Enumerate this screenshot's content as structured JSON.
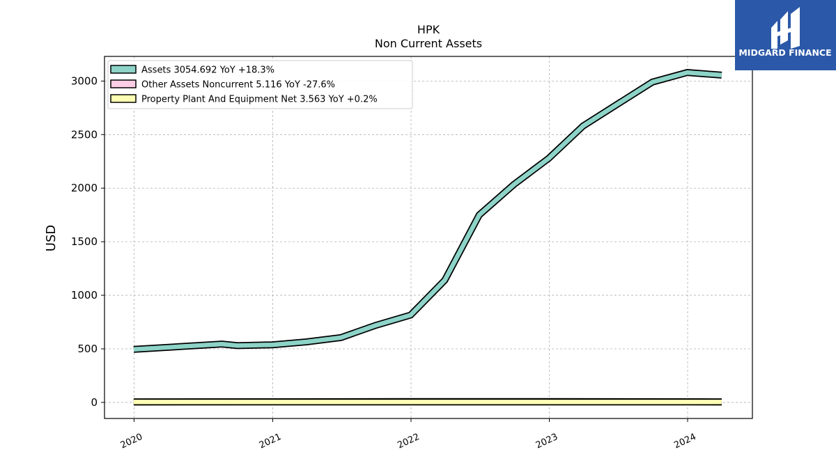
{
  "title": "HPK",
  "subtitle": "Non Current  Assets",
  "logo": {
    "brand": "MIDGARD FINANCE",
    "bg_color": "#2b58a8"
  },
  "chart_data": {
    "type": "line",
    "title": "HPK",
    "subtitle": "Non Current  Assets",
    "xlabel": "",
    "ylabel": "USD",
    "ylim": [
      -150,
      3230
    ],
    "xlim": [
      "2019-10-15",
      "2024-06-20"
    ],
    "yticks": [
      0,
      500,
      1000,
      1500,
      2000,
      2500,
      3000
    ],
    "xticks": [
      "2020",
      "2021",
      "2022",
      "2023",
      "2024"
    ],
    "grid": true,
    "legend_position": "top-left",
    "series": [
      {
        "name": "Assets",
        "legend_label": "Assets  3054.692 YoY +18.3%",
        "color": "#8dd3c7",
        "x": [
          "2019-12-31",
          "2020-08-20",
          "2020-09-30",
          "2020-12-31",
          "2021-03-31",
          "2021-06-30",
          "2021-09-30",
          "2021-12-31",
          "2022-03-31",
          "2022-06-30",
          "2022-09-30",
          "2022-12-31",
          "2023-03-31",
          "2023-06-30",
          "2023-09-30",
          "2023-12-31",
          "2024-03-31"
        ],
        "y": [
          495,
          545,
          530,
          538,
          565,
          605,
          720,
          815,
          1140,
          1750,
          2035,
          2280,
          2580,
          2785,
          2990,
          3080,
          3055
        ]
      },
      {
        "name": "Other Assets Noncurrent",
        "legend_label": "Other Assets Noncurrent  5.116 YoY -27.6%",
        "color": "#fccde5",
        "x": [
          "2019-12-31",
          "2020-12-31",
          "2021-12-31",
          "2022-12-31",
          "2023-12-31",
          "2024-03-31"
        ],
        "y": [
          5,
          6,
          7,
          7,
          6,
          5
        ]
      },
      {
        "name": "Property Plant And Equipment Net",
        "legend_label": "Property Plant And Equipment Net  3.563 YoY +0.2%",
        "color": "#ffffb3",
        "x": [
          "2019-12-31",
          "2020-12-31",
          "2021-12-31",
          "2022-12-31",
          "2023-12-31",
          "2024-03-31"
        ],
        "y": [
          4,
          4,
          4,
          4,
          4,
          4
        ]
      }
    ]
  }
}
